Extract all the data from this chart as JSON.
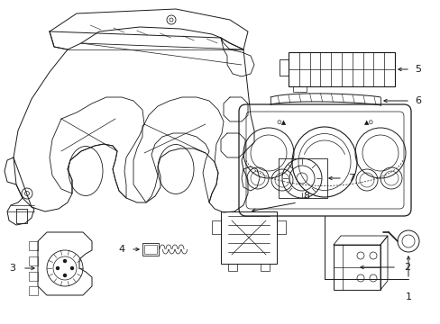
{
  "bg_color": "#ffffff",
  "line_color": "#1a1a1a",
  "font_size": 8,
  "fig_w": 4.89,
  "fig_h": 3.6,
  "dpi": 100
}
